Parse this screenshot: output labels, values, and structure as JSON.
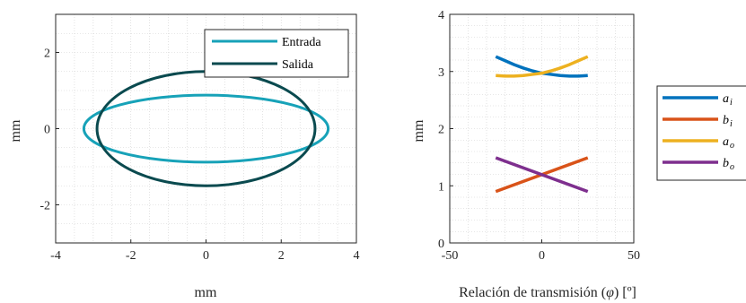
{
  "colors": {
    "axis": "#262626",
    "grid": "#cfcfcf",
    "entrada": "#17a2b8",
    "salida": "#0a4a4f",
    "a_i": "#0072bd",
    "b_i": "#d95319",
    "a_o": "#edb120",
    "b_o": "#7e2f8e"
  },
  "chart_data": [
    {
      "type": "line",
      "xlabel": "mm",
      "ylabel": "mm",
      "xlim": [
        -4,
        4
      ],
      "ylim": [
        -3,
        3
      ],
      "xticks": [
        "-4",
        "-2",
        "0",
        "2",
        "4"
      ],
      "yticks": [
        "-2",
        "0",
        "2"
      ],
      "xtick_values": [
        -4,
        -2,
        0,
        2,
        4
      ],
      "ytick_values": [
        -2,
        0,
        2
      ],
      "grid": "minor dotted",
      "legend_position": "top-right",
      "series": [
        {
          "name": "Entrada",
          "shape": "ellipse",
          "center": [
            0,
            0
          ],
          "semi_axis_x": 3.25,
          "semi_axis_y": 0.88
        },
        {
          "name": "Salida",
          "shape": "ellipse",
          "center": [
            0,
            0
          ],
          "semi_axis_x": 2.9,
          "semi_axis_y": 1.5
        }
      ]
    },
    {
      "type": "line",
      "xlabel": "Relación de transmisión (",
      "xlabel_symbol": "φ",
      "xlabel_suffix": ") [º]",
      "ylabel": "mm",
      "xlim": [
        -50,
        50
      ],
      "ylim": [
        0,
        4
      ],
      "xticks": [
        "-50",
        "0",
        "50"
      ],
      "yticks": [
        "0",
        "1",
        "2",
        "3",
        "4"
      ],
      "xtick_values": [
        -50,
        0,
        50
      ],
      "ytick_values": [
        0,
        1,
        2,
        3,
        4
      ],
      "grid": "minor dotted",
      "legend_position": "outside-right",
      "series": [
        {
          "name": "a",
          "sub": "i",
          "x": [
            -25,
            -20,
            -15,
            -10,
            -5,
            0,
            5,
            10,
            15,
            20,
            25
          ],
          "values": [
            3.26,
            3.19,
            3.12,
            3.06,
            3.01,
            2.97,
            2.95,
            2.93,
            2.92,
            2.92,
            2.93
          ]
        },
        {
          "name": "b",
          "sub": "i",
          "x": [
            -25,
            25
          ],
          "values": [
            0.9,
            1.49
          ]
        },
        {
          "name": "a",
          "sub": "o",
          "x": [
            -25,
            -20,
            -15,
            -10,
            -5,
            0,
            5,
            10,
            15,
            20,
            25
          ],
          "values": [
            2.93,
            2.92,
            2.92,
            2.93,
            2.95,
            2.97,
            3.01,
            3.06,
            3.12,
            3.19,
            3.26
          ]
        },
        {
          "name": "b",
          "sub": "o",
          "x": [
            -25,
            25
          ],
          "values": [
            1.49,
            0.9
          ]
        }
      ]
    }
  ]
}
